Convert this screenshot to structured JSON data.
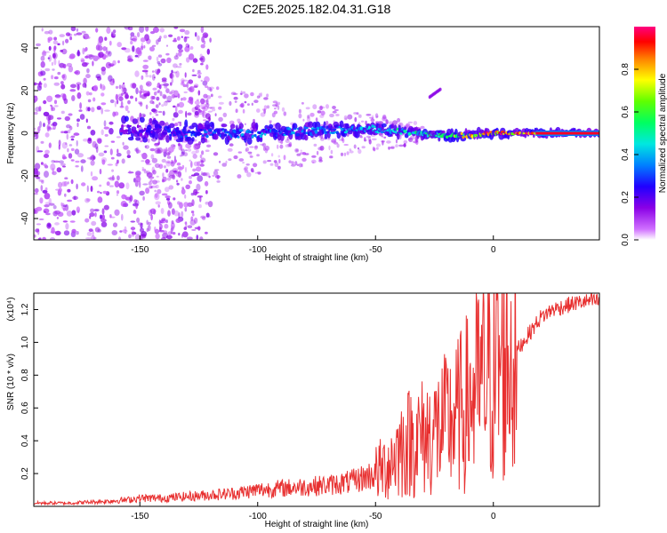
{
  "figure_title": "C2E5.2025.182.04.31.G18",
  "chart_data": [
    {
      "type": "heatmap",
      "title": "C2E5.2025.182.04.31.G18",
      "xlabel": "Height of straight line (km)",
      "ylabel": "Frequency (Hz)",
      "xlim": [
        -195,
        45
      ],
      "ylim": [
        -50,
        50
      ],
      "x_ticks": [
        -150,
        -100,
        -50,
        0
      ],
      "y_ticks": [
        -40,
        -20,
        0,
        20,
        40
      ],
      "colorbar": {
        "label": "Normalized spectral amplitude",
        "range": [
          0,
          1
        ],
        "ticks": [
          "0.0",
          "0.2",
          "0.4",
          "0.6",
          "0.8"
        ],
        "colormap": [
          "#ffffff",
          "#8a00e6",
          "#3a00ff",
          "#0060ff",
          "#00d8ff",
          "#00ff80",
          "#40ff00",
          "#ffff00",
          "#ff8000",
          "#ff0000",
          "#ff0080"
        ]
      },
      "ridge": {
        "description_points_x": [
          -155,
          -140,
          -120,
          -100,
          -80,
          -60,
          -50,
          -40,
          -30,
          -20,
          -10,
          0,
          10,
          20,
          30,
          45
        ],
        "center_frequency_hz": [
          2,
          1,
          0,
          0,
          1,
          2,
          2,
          1,
          0,
          -1,
          -1,
          0,
          0,
          0,
          0,
          0
        ],
        "peak_amplitude": [
          0.15,
          0.25,
          0.3,
          0.35,
          0.35,
          0.4,
          0.4,
          0.45,
          0.5,
          0.6,
          0.75,
          0.85,
          0.9,
          0.95,
          0.95,
          0.95
        ]
      },
      "grid": false
    },
    {
      "type": "line",
      "xlabel": "Height of straight line (km)",
      "ylabel": "SNR (10 * v/v)",
      "y_multiplier": "(x10⁴)",
      "xlim": [
        -195,
        45
      ],
      "ylim": [
        0,
        1.3
      ],
      "x_ticks": [
        -150,
        -100,
        -50,
        0
      ],
      "y_ticks": [
        "0.2",
        "0.4",
        "0.6",
        "0.8",
        "1.0",
        "1.2"
      ],
      "series": [
        {
          "color": "#e83030",
          "x": [
            -195,
            -180,
            -165,
            -155,
            -150,
            -140,
            -130,
            -120,
            -110,
            -100,
            -90,
            -80,
            -70,
            -60,
            -50,
            -45,
            -40,
            -35,
            -30,
            -25,
            -20,
            -15,
            -10,
            -5,
            0,
            5,
            10,
            15,
            20,
            25,
            30,
            35,
            40,
            45
          ],
          "values": [
            0.02,
            0.02,
            0.03,
            0.04,
            0.05,
            0.05,
            0.06,
            0.07,
            0.08,
            0.1,
            0.11,
            0.12,
            0.13,
            0.15,
            0.2,
            0.25,
            0.35,
            0.4,
            0.42,
            0.45,
            0.5,
            0.55,
            0.65,
            0.75,
            0.8,
            0.9,
            0.95,
            1.05,
            1.15,
            1.2,
            1.22,
            1.24,
            1.25,
            1.25
          ]
        }
      ],
      "grid": false
    }
  ]
}
